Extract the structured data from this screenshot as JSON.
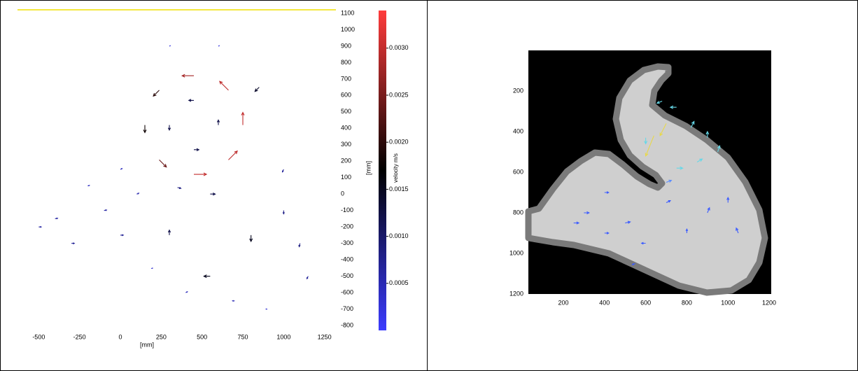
{
  "chart_data": [
    {
      "type": "quiver",
      "xlabel": "[mm]",
      "ylabel": "[mm]",
      "xlim": [
        -630,
        1320
      ],
      "ylim": [
        -800,
        1100
      ],
      "xticks": [
        -500,
        -250,
        0,
        250,
        500,
        750,
        1000,
        1250
      ],
      "yticks": [
        1100,
        1000,
        900,
        800,
        700,
        600,
        500,
        400,
        300,
        200,
        100,
        0,
        -100,
        -200,
        -300,
        -400,
        -500,
        -600,
        -700,
        -800
      ],
      "colorbar": {
        "label": "velocity m/s",
        "lim": [
          0,
          0.0034
        ],
        "ticks": [
          {
            "value": 0.003,
            "label": "0.0030"
          },
          {
            "value": 0.0025,
            "label": "0.0025"
          },
          {
            "value": 0.002,
            "label": "0.0020"
          },
          {
            "value": 0.0015,
            "label": "0.0015"
          },
          {
            "value": 0.001,
            "label": "0.0010"
          },
          {
            "value": 0.0005,
            "label": "0.0005"
          }
        ],
        "colormap": [
          "#3c3cff",
          "#000000",
          "#ff3c3c"
        ]
      },
      "vectors": {
        "x": [
          750,
          662,
          450,
          238,
          150,
          238,
          450,
          662,
          600,
          450,
          300,
          450,
          800,
          550,
          300,
          550,
          -400,
          -300,
          -100,
          0,
          100,
          -200,
          0,
          200,
          1000,
          1100,
          1000,
          300,
          700,
          900,
          400,
          1150,
          -500,
          850,
          600,
          350
        ],
        "y": [
          420,
          632,
          720,
          632,
          420,
          208,
          120,
          208,
          420,
          570,
          420,
          270,
          -250,
          0,
          -250,
          -500,
          -150,
          -300,
          -100,
          -250,
          0,
          50,
          150,
          -450,
          -100,
          -300,
          150,
          900,
          -650,
          -700,
          -600,
          -500,
          -200,
          650,
          900,
          40
        ],
        "u": [
          0,
          -0.0021,
          -0.0028,
          -0.0014,
          0,
          0.0017,
          0.003,
          0.0021,
          0,
          -0.0012,
          0,
          0.0012,
          0,
          0.0012,
          0,
          -0.0015,
          0.0006,
          0.0007,
          0.0006,
          0.0007,
          0.0005,
          0.0004,
          0.0004,
          -0.0003,
          0,
          -0.0002,
          -0.0003,
          0.0002,
          -0.0005,
          -0.0003,
          0.0004,
          -0.0003,
          0.0006,
          -0.001,
          0.0002,
          0.0008
        ],
        "v": [
          0.003,
          0.0021,
          0,
          -0.0014,
          -0.0018,
          -0.0017,
          0,
          0.0021,
          0.0012,
          0,
          -0.0012,
          0,
          -0.0015,
          0,
          0.0012,
          0,
          0.0001,
          0,
          0.0001,
          0,
          0.0002,
          0.0001,
          0.0002,
          -0.0001,
          -0.0008,
          -0.0008,
          -0.0006,
          0.0001,
          0,
          0,
          0.0002,
          -0.0006,
          0,
          -0.001,
          0.0001,
          -0.0002
        ]
      }
    },
    {
      "type": "quiver",
      "xlim": [
        30,
        1210
      ],
      "ylim": [
        0,
        1200
      ],
      "y_inverted": true,
      "xticks": [
        200,
        400,
        600,
        800,
        1000,
        1200
      ],
      "yticks": [
        200,
        400,
        600,
        800,
        1000,
        1200
      ],
      "vectors": {
        "x": [
          640,
          700,
          900,
          750,
          600,
          750,
          680,
          850,
          950,
          400,
          300,
          500,
          700,
          800,
          900,
          1000,
          600,
          400,
          1050,
          250,
          700,
          820,
          550
        ],
        "y": [
          420,
          360,
          430,
          280,
          430,
          580,
          250,
          550,
          500,
          700,
          800,
          850,
          750,
          900,
          800,
          750,
          950,
          900,
          900,
          850,
          650,
          380,
          1050
        ],
        "u": [
          -40,
          -30,
          0,
          -30,
          0,
          30,
          -25,
          25,
          10,
          20,
          25,
          25,
          20,
          0,
          10,
          0,
          -20,
          20,
          -10,
          25,
          25,
          15,
          -15
        ],
        "v": [
          100,
          60,
          -30,
          0,
          30,
          0,
          10,
          -15,
          -30,
          0,
          0,
          -5,
          -10,
          -20,
          -25,
          -25,
          0,
          0,
          -25,
          0,
          -10,
          -30,
          5
        ],
        "colors": [
          "#e8d84a",
          "#e8d84a",
          "#66d8e8",
          "#66d8e8",
          "#66d8e8",
          "#66d8e8",
          "#66d8e8",
          "#66d8e8",
          "#66d8e8",
          "#3c5cff",
          "#3c5cff",
          "#3c5cff",
          "#3c5cff",
          "#3c5cff",
          "#3c5cff",
          "#3c5cff",
          "#3c5cff",
          "#3c5cff",
          "#3c5cff",
          "#3c5cff",
          "#5a8cff",
          "#66d8e8",
          "#3c5cff"
        ]
      }
    }
  ]
}
